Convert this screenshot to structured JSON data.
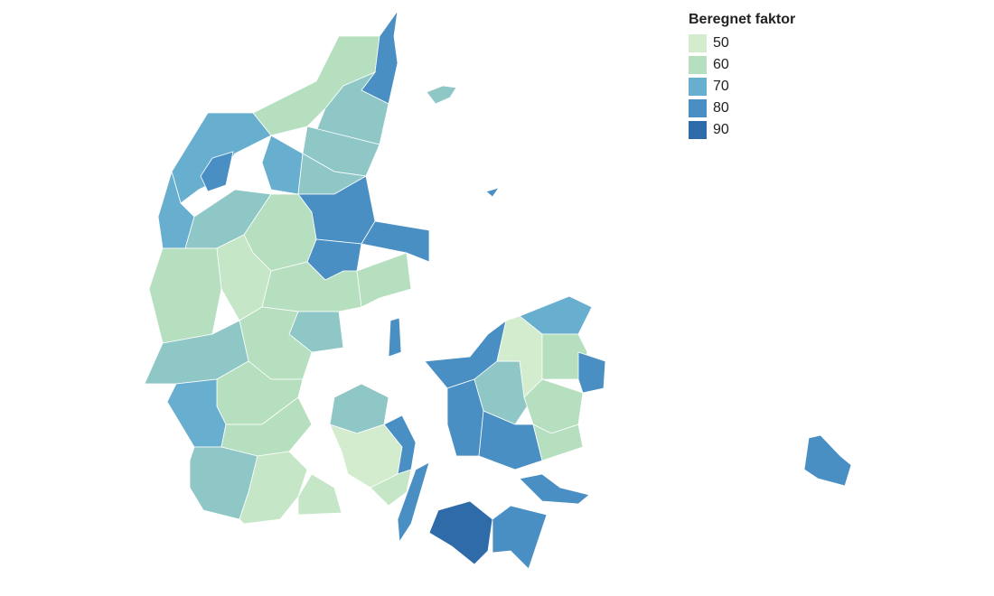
{
  "legend": {
    "title": "Beregnet faktor",
    "items": [
      {
        "label": "50",
        "color": "#d4ecce"
      },
      {
        "label": "60",
        "color": "#b5dfbf"
      },
      {
        "label": "70",
        "color": "#68afcf"
      },
      {
        "label": "80",
        "color": "#4a8fc4"
      },
      {
        "label": "90",
        "color": "#2f6aa9"
      }
    ]
  }
}
